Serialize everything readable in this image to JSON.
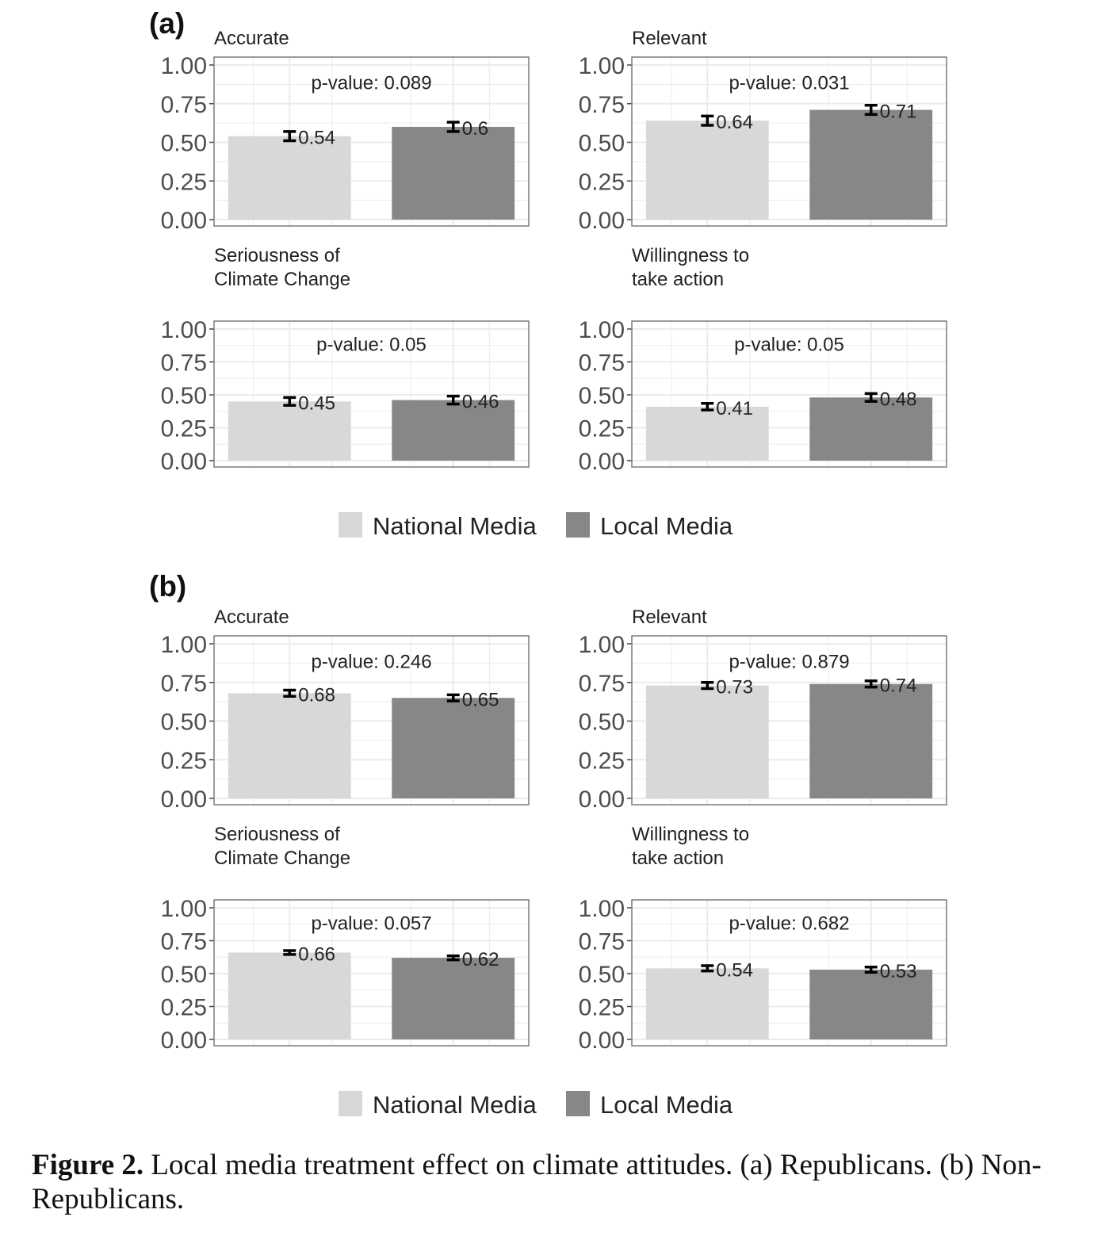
{
  "figure": {
    "caption_label": "Figure 2.",
    "caption_text": "Local media treatment effect on climate attitudes. (a) Republicans. (b) Non-Republicans."
  },
  "colors": {
    "national": "#d8d8d8",
    "local": "#878787",
    "grid": "#ebebeb",
    "frame": "#7a7a7a",
    "text": "#222222"
  },
  "chart_data": [
    {
      "type": "bar",
      "panel_label": "(a)",
      "legend": [
        "National Media",
        "Local Media"
      ],
      "ylim": [
        0,
        1
      ],
      "yticks": [
        "0.00",
        "0.25",
        "0.50",
        "0.75",
        "1.00"
      ],
      "facets": [
        {
          "title": [
            "Accurate"
          ],
          "p_label": "p-value: 0.089",
          "values": [
            0.54,
            0.6
          ],
          "labels": [
            "0.54",
            "0.6"
          ],
          "err": [
            0.03,
            0.03
          ]
        },
        {
          "title": [
            "Relevant"
          ],
          "p_label": "p-value: 0.031",
          "values": [
            0.64,
            0.71
          ],
          "labels": [
            "0.64",
            "0.71"
          ],
          "err": [
            0.03,
            0.03
          ]
        },
        {
          "title": [
            "Seriousness of",
            "Climate Change"
          ],
          "p_label": "p-value: 0.05",
          "values": [
            0.45,
            0.46
          ],
          "labels": [
            "0.45",
            "0.46"
          ],
          "err": [
            0.03,
            0.03
          ]
        },
        {
          "title": [
            "Willingness to",
            "take action"
          ],
          "p_label": "p-value: 0.05",
          "values": [
            0.41,
            0.48
          ],
          "labels": [
            "0.41",
            "0.48"
          ],
          "err": [
            0.025,
            0.03
          ]
        }
      ]
    },
    {
      "type": "bar",
      "panel_label": "(b)",
      "legend": [
        "National Media",
        "Local Media"
      ],
      "ylim": [
        0,
        1
      ],
      "yticks": [
        "0.00",
        "0.25",
        "0.50",
        "0.75",
        "1.00"
      ],
      "facets": [
        {
          "title": [
            "Accurate"
          ],
          "p_label": "p-value: 0.246",
          "values": [
            0.68,
            0.65
          ],
          "labels": [
            "0.68",
            "0.65"
          ],
          "err": [
            0.02,
            0.02
          ]
        },
        {
          "title": [
            "Relevant"
          ],
          "p_label": "p-value: 0.879",
          "values": [
            0.73,
            0.74
          ],
          "labels": [
            "0.73",
            "0.74"
          ],
          "err": [
            0.02,
            0.02
          ]
        },
        {
          "title": [
            "Seriousness of",
            "Climate Change"
          ],
          "p_label": "p-value: 0.057",
          "values": [
            0.66,
            0.62
          ],
          "labels": [
            "0.66",
            "0.62"
          ],
          "err": [
            0.015,
            0.015
          ]
        },
        {
          "title": [
            "Willingness to",
            "take action"
          ],
          "p_label": "p-value: 0.682",
          "values": [
            0.54,
            0.53
          ],
          "labels": [
            "0.54",
            "0.53"
          ],
          "err": [
            0.02,
            0.02
          ]
        }
      ]
    }
  ]
}
